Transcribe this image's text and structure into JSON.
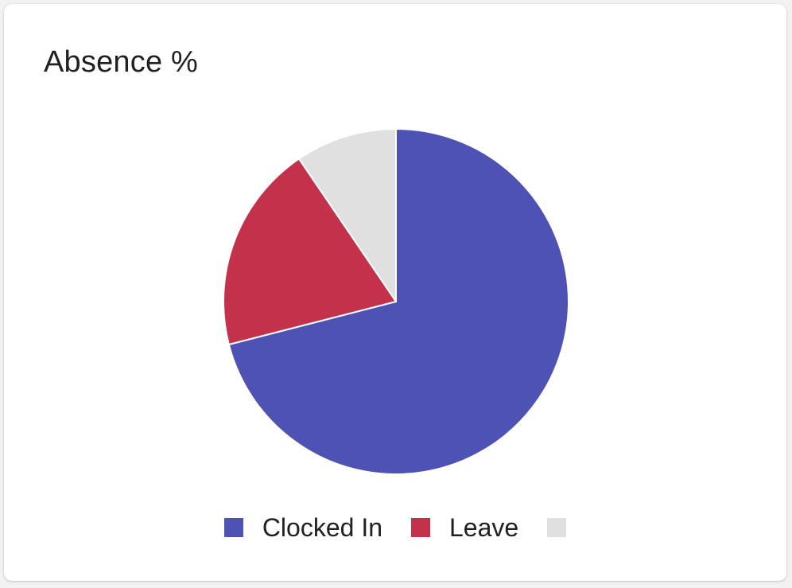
{
  "card": {
    "title": "Absence %"
  },
  "chart_data": {
    "type": "pie",
    "title": "Absence %",
    "slices": [
      {
        "label": "Clocked In",
        "value": 71,
        "color": "#4f52b5"
      },
      {
        "label": "Leave",
        "value": 19.5,
        "color": "#c4314b"
      },
      {
        "label": "",
        "value": 9.5,
        "color": "#e0e0e0"
      }
    ],
    "start_angle_deg": 0,
    "direction": "clockwise",
    "legend_position": "bottom",
    "slice_border_color": "#ffffff"
  }
}
